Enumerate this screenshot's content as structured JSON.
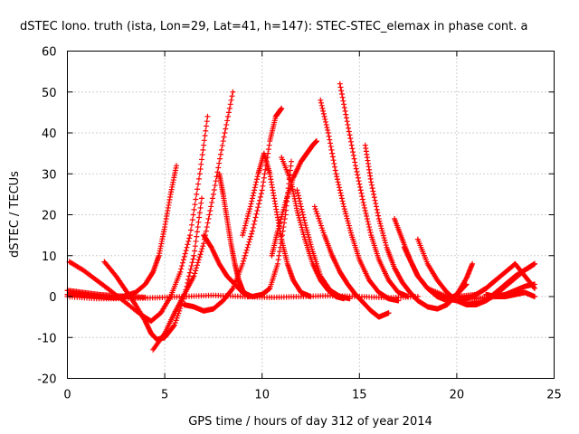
{
  "chart_data": {
    "type": "scatter",
    "title": "dSTEC Iono. truth (ista, Lon=29, Lat=41, h=147): STEC-STEC_elemax in phase cont. a",
    "xlabel": "GPS time / hours of day 312 of year 2014",
    "ylabel": "dSTEC  / TECUs",
    "xlim": [
      0,
      25
    ],
    "ylim": [
      -20,
      60
    ],
    "xticks": [
      0,
      5,
      10,
      15,
      20,
      25
    ],
    "yticks": [
      -20,
      -10,
      0,
      10,
      20,
      30,
      40,
      50,
      60
    ],
    "grid": true,
    "marker": "+",
    "color": "#ff0000",
    "series": [
      {
        "x": [
          0.0,
          0.5,
          1.0,
          1.5,
          2.0,
          2.5,
          3.0,
          3.5,
          4.0,
          4.4,
          4.7,
          5.0,
          5.3,
          5.6
        ],
        "y": [
          0.5,
          0.5,
          0.3,
          0.0,
          -0.2,
          -0.3,
          0.2,
          1.0,
          3.0,
          6.0,
          10.0,
          17.0,
          25.0,
          32.0
        ]
      },
      {
        "x": [
          0.1,
          0.8,
          1.5,
          2.2,
          3.0,
          3.8,
          4.3,
          4.8,
          5.3,
          5.8,
          6.3,
          6.8,
          7.2
        ],
        "y": [
          8.5,
          6.5,
          4.0,
          1.5,
          -1.5,
          -4.5,
          -6.0,
          -4.0,
          0.0,
          6.0,
          15.0,
          30.0,
          44.0
        ]
      },
      {
        "x": [
          1.9,
          2.5,
          3.0,
          3.5,
          4.0,
          4.3,
          4.6,
          5.0,
          5.5,
          6.0,
          6.5,
          6.9
        ],
        "y": [
          8.5,
          5.0,
          1.5,
          -2.0,
          -6.0,
          -9.0,
          -10.5,
          -10.0,
          -7.0,
          0.0,
          10.0,
          24.0
        ]
      },
      {
        "x": [
          4.4,
          5.0,
          5.5,
          6.0,
          6.5,
          7.0,
          7.5,
          8.0,
          8.5
        ],
        "y": [
          -13.0,
          -9.0,
          -4.0,
          0.5,
          5.0,
          13.0,
          25.0,
          38.0,
          50.0
        ]
      },
      {
        "x": [
          6.0,
          6.5,
          7.0,
          7.5,
          8.0,
          8.5,
          9.0,
          9.5,
          10.0,
          10.4,
          10.7,
          11.0
        ],
        "y": [
          -2.0,
          -2.5,
          -3.5,
          -3.0,
          -1.0,
          2.0,
          8.0,
          16.0,
          26.0,
          38.0,
          44.0,
          46.0
        ]
      },
      {
        "x": [
          7.0,
          7.4,
          7.8,
          8.2,
          8.6,
          9.0,
          9.5,
          10.0,
          10.4,
          10.8,
          11.2,
          11.5
        ],
        "y": [
          15.0,
          12.0,
          8.0,
          5.0,
          3.0,
          1.0,
          0.0,
          0.5,
          2.0,
          8.0,
          20.0,
          33.0
        ]
      },
      {
        "x": [
          7.8,
          8.0,
          8.2,
          8.4,
          8.6,
          8.8,
          9.0,
          9.3
        ],
        "y": [
          30.0,
          25.0,
          19.0,
          13.0,
          8.0,
          4.0,
          1.5,
          0.0
        ]
      },
      {
        "x": [
          9.0,
          9.4,
          9.8,
          10.1,
          10.4,
          10.7,
          11.0,
          11.3,
          11.6,
          12.0,
          12.5
        ],
        "y": [
          15.0,
          22.0,
          30.0,
          35.0,
          30.0,
          22.0,
          14.0,
          8.0,
          4.0,
          1.0,
          0.0
        ]
      },
      {
        "x": [
          10.5,
          10.8,
          11.2,
          11.6,
          12.0,
          12.3,
          12.6,
          12.8
        ],
        "y": [
          10.0,
          16.0,
          23.0,
          29.0,
          33.0,
          35.0,
          37.0,
          38.0
        ]
      },
      {
        "x": [
          11.0,
          11.5,
          11.8,
          12.2,
          12.6,
          13.0,
          13.4,
          13.8,
          14.2
        ],
        "y": [
          34.0,
          28.0,
          21.0,
          14.0,
          8.0,
          4.0,
          1.5,
          0.0,
          -0.5
        ]
      },
      {
        "x": [
          11.8,
          12.2,
          12.6,
          13.0,
          13.5,
          14.0,
          14.5
        ],
        "y": [
          26.0,
          18.0,
          11.0,
          5.0,
          1.5,
          0.0,
          -0.5
        ]
      },
      {
        "x": [
          12.7,
          13.2,
          13.6,
          14.0,
          14.4,
          14.8,
          15.2,
          15.6,
          16.0,
          16.5
        ],
        "y": [
          22.0,
          15.0,
          10.0,
          6.0,
          3.0,
          0.5,
          -1.5,
          -3.5,
          -5.0,
          -4.0
        ]
      },
      {
        "x": [
          13.0,
          13.4,
          13.8,
          14.2,
          14.6,
          15.0,
          15.5,
          16.0,
          16.5,
          17.0
        ],
        "y": [
          48.0,
          40.0,
          30.0,
          22.0,
          15.0,
          9.0,
          4.0,
          1.0,
          -0.5,
          -1.0
        ]
      },
      {
        "x": [
          14.0,
          14.4,
          14.8,
          15.2,
          15.6,
          16.0,
          16.5,
          17.0,
          17.5
        ],
        "y": [
          52.0,
          42.0,
          32.0,
          23.0,
          15.0,
          9.0,
          4.0,
          1.0,
          0.0
        ]
      },
      {
        "x": [
          15.3,
          15.6,
          16.0,
          16.4,
          16.8,
          17.2,
          17.6,
          18.0,
          18.5,
          19.0,
          19.5,
          20.0,
          20.5
        ],
        "y": [
          37.0,
          28.0,
          19.0,
          12.0,
          7.0,
          3.5,
          1.0,
          -1.0,
          -2.5,
          -3.0,
          -2.0,
          0.5,
          3.0
        ]
      },
      {
        "x": [
          16.8,
          17.2,
          17.6,
          18.0,
          18.5,
          19.0,
          19.5,
          20.0,
          20.5,
          20.8
        ],
        "y": [
          19.0,
          14.0,
          9.0,
          5.0,
          2.0,
          0.0,
          -1.0,
          0.5,
          4.5,
          8.0
        ]
      },
      {
        "x": [
          17.3,
          17.7,
          18.0,
          18.5,
          19.0,
          19.5,
          20.0,
          20.5,
          21.0,
          21.5,
          22.0
        ],
        "y": [
          12.0,
          8.0,
          5.0,
          2.0,
          0.5,
          -0.5,
          -1.0,
          -0.5,
          0.5,
          2.0,
          4.0
        ]
      },
      {
        "x": [
          18.0,
          18.5,
          19.0,
          19.5,
          20.0,
          20.5,
          21.0,
          21.5,
          22.0,
          22.5,
          23.0,
          23.5,
          24.0
        ],
        "y": [
          14.0,
          8.0,
          4.0,
          1.0,
          -1.0,
          -2.0,
          -2.0,
          -1.0,
          0.5,
          2.5,
          4.5,
          6.5,
          8.0
        ]
      },
      {
        "x": [
          18.5,
          19.5,
          20.5,
          21.5,
          22.0,
          22.5,
          23.0,
          23.5,
          24.0
        ],
        "y": [
          2.0,
          0.0,
          -1.5,
          -1.0,
          1.0,
          3.0,
          5.0,
          6.5,
          8.0
        ]
      },
      {
        "x": [
          19.0,
          20.0,
          21.0,
          21.5,
          22.0,
          22.5,
          23.0,
          23.5,
          24.0
        ],
        "y": [
          0.0,
          0.0,
          0.5,
          2.0,
          4.0,
          6.0,
          8.0,
          5.0,
          2.0
        ]
      },
      {
        "x": [
          20.0,
          21.0,
          22.0,
          22.5,
          23.0,
          23.5,
          24.0
        ],
        "y": [
          0.0,
          -0.5,
          0.0,
          0.5,
          1.5,
          2.5,
          3.0
        ]
      },
      {
        "x": [
          21.5,
          22.0,
          22.5,
          23.0,
          23.5,
          24.0
        ],
        "y": [
          0.5,
          0.0,
          0.0,
          0.5,
          1.0,
          0.0
        ]
      },
      {
        "x": [
          0.0,
          1.5,
          3.0,
          4.5,
          6.0,
          7.5,
          9.0,
          10.5,
          12.0,
          13.5,
          15.0,
          16.5,
          18.0
        ],
        "y": [
          0.0,
          -0.5,
          -0.5,
          -0.3,
          0.0,
          0.3,
          0.0,
          -0.2,
          0.0,
          0.2,
          0.0,
          -0.3,
          0.0
        ]
      },
      {
        "x": [
          0.0,
          0.8,
          1.6,
          2.4,
          3.2,
          4.0
        ],
        "y": [
          1.5,
          1.0,
          0.5,
          0.2,
          0.0,
          -0.2
        ]
      }
    ]
  }
}
